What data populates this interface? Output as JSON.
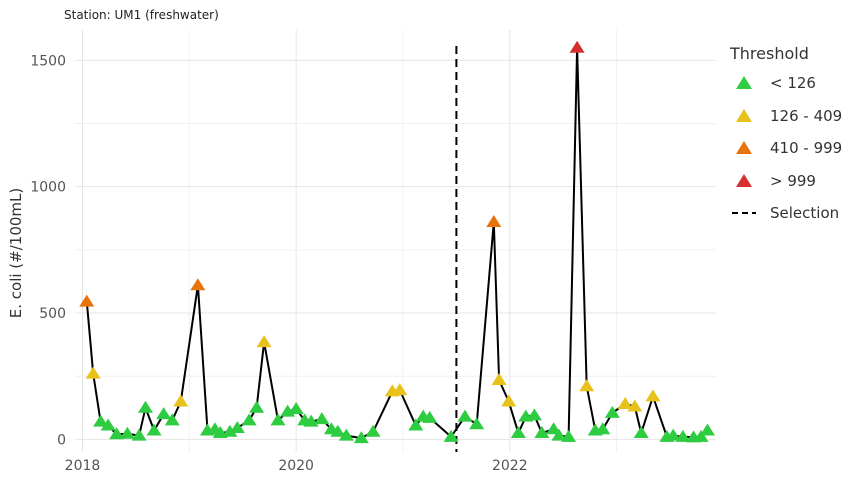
{
  "subtitle": "Station: UM1 (freshwater)",
  "legend": {
    "title": "Threshold",
    "items": [
      {
        "label": "< 126",
        "color": "#2ecc40",
        "symbol": "triangle"
      },
      {
        "label": "126 - 409",
        "color": "#e8c21a",
        "symbol": "triangle"
      },
      {
        "label": "410 - 999",
        "color": "#e8730c",
        "symbol": "triangle"
      },
      {
        "label": "> 999",
        "color": "#d62f2f",
        "symbol": "triangle"
      },
      {
        "label": "Selection",
        "color": "#000000",
        "symbol": "dashed-line"
      }
    ]
  },
  "chart_data": {
    "type": "line",
    "ylabel": "E. coli (#/100mL)",
    "xlabel": "",
    "xlim": [
      2017.93,
      2023.93
    ],
    "ylim": [
      -50,
      1620
    ],
    "xticks": [
      2018,
      2020,
      2022
    ],
    "yticks": [
      0,
      500,
      1000,
      1500
    ],
    "grid": true,
    "legend_position": "right",
    "selection_x": 2021.5,
    "thresholds": [
      {
        "max": 126,
        "color": "#2ecc40"
      },
      {
        "max": 410,
        "color": "#e8c21a"
      },
      {
        "max": 1000,
        "color": "#e8730c"
      },
      {
        "max": 1000000,
        "color": "#d62f2f"
      }
    ],
    "series": [
      {
        "x": [
          2018.04,
          2018.1,
          2018.17,
          2018.24,
          2018.32,
          2018.42,
          2018.53,
          2018.59,
          2018.67,
          2018.76,
          2018.84,
          2018.92,
          2019.08,
          2019.17,
          2019.24,
          2019.29,
          2019.38,
          2019.45,
          2019.56,
          2019.63,
          2019.7,
          2019.83,
          2019.92,
          2020.0,
          2020.08,
          2020.14,
          2020.24,
          2020.33,
          2020.39,
          2020.47,
          2020.61,
          2020.72,
          2020.9,
          2020.97,
          2021.12,
          2021.19,
          2021.25,
          2021.45,
          2021.58,
          2021.69,
          2021.85,
          2021.9,
          2021.99,
          2022.08,
          2022.15,
          2022.23,
          2022.3,
          2022.41,
          2022.46,
          2022.55,
          2022.63,
          2022.72,
          2022.8,
          2022.87,
          2022.96,
          2023.08,
          2023.17,
          2023.23,
          2023.34,
          2023.47,
          2023.53,
          2023.62,
          2023.72,
          2023.79,
          2023.85
        ],
        "values": [
          545,
          260,
          70,
          55,
          20,
          22,
          15,
          125,
          35,
          100,
          75,
          150,
          610,
          35,
          40,
          25,
          30,
          45,
          75,
          125,
          385,
          75,
          110,
          120,
          75,
          70,
          80,
          40,
          30,
          15,
          5,
          30,
          190,
          195,
          55,
          90,
          85,
          10,
          90,
          60,
          860,
          235,
          150,
          25,
          90,
          95,
          25,
          40,
          15,
          10,
          1550,
          210,
          35,
          40,
          105,
          140,
          130,
          25,
          170,
          10,
          15,
          10,
          8,
          10,
          35
        ]
      }
    ]
  }
}
